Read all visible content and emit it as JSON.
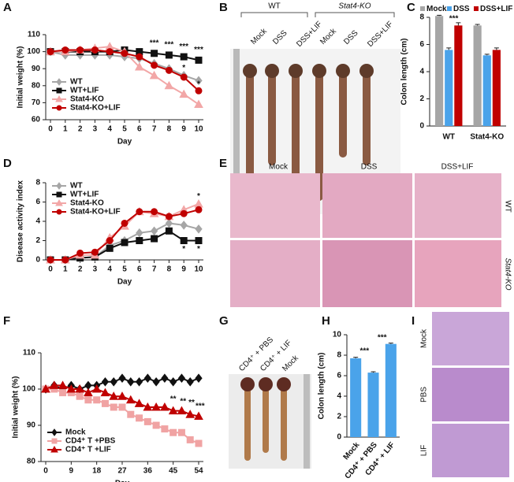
{
  "panels": [
    "A",
    "B",
    "C",
    "D",
    "E",
    "F",
    "G",
    "H",
    "I"
  ],
  "chart_data": [
    {
      "type": "line",
      "ylabel": "Initial  weight (%)",
      "xlabel": "Day",
      "x": [
        0,
        1,
        2,
        3,
        4,
        5,
        6,
        7,
        8,
        9,
        10
      ],
      "xticks": [
        0,
        1,
        2,
        3,
        4,
        5,
        6,
        7,
        8,
        9,
        10
      ],
      "ylim": [
        60,
        110
      ],
      "yticks": [
        60,
        70,
        80,
        90,
        100,
        110
      ],
      "legend": "lower left",
      "series": [
        {
          "name": "WT",
          "color": "#a6a6a6",
          "marker": "diamond",
          "values": [
            100,
            98,
            98,
            98,
            98,
            97,
            96,
            93,
            90,
            86,
            83
          ]
        },
        {
          "name": "WT+LIF",
          "color": "#111111",
          "marker": "square",
          "values": [
            100,
            100,
            100,
            100,
            100,
            101,
            100,
            99,
            98,
            97,
            95
          ]
        },
        {
          "name": "Stat4-KO",
          "color": "#f2a7a7",
          "marker": "triangle",
          "values": [
            100,
            100,
            101,
            102,
            103,
            100,
            91,
            86,
            80,
            75,
            69
          ]
        },
        {
          "name": "Stat4-KO+LIF",
          "color": "#c00000",
          "marker": "circle",
          "values": [
            100,
            101,
            101,
            101,
            100,
            99,
            97,
            92,
            89,
            85,
            77
          ]
        }
      ],
      "annotations": [
        "***",
        "***",
        "***",
        "***",
        "*",
        "*"
      ]
    },
    {
      "type": "bar",
      "ylabel": "Colon length (cm)",
      "categories": [
        "WT",
        "Stat4-KO"
      ],
      "ylim": [
        0,
        8
      ],
      "yticks": [
        0,
        2,
        4,
        6,
        8
      ],
      "legend": "top",
      "series": [
        {
          "name": "Mock",
          "color": "#a6a6a6",
          "values": [
            8.1,
            7.4
          ],
          "errors": [
            0.05,
            0.08
          ]
        },
        {
          "name": "DSS",
          "color": "#4aa3ea",
          "values": [
            5.6,
            5.2
          ],
          "errors": [
            0.15,
            0.08
          ]
        },
        {
          "name": "DSS+LIF",
          "color": "#c00000",
          "values": [
            7.4,
            5.6
          ],
          "errors": [
            0.2,
            0.15
          ]
        }
      ],
      "annotations": [
        "***"
      ]
    },
    {
      "type": "line",
      "ylabel": "Disease activity index",
      "xlabel": "Day",
      "x": [
        0,
        1,
        2,
        3,
        4,
        5,
        6,
        7,
        8,
        9,
        10
      ],
      "xticks": [
        0,
        1,
        2,
        3,
        4,
        5,
        6,
        7,
        8,
        9,
        10
      ],
      "ylim": [
        0,
        8
      ],
      "yticks": [
        0,
        2,
        4,
        6,
        8
      ],
      "legend": "upper left",
      "series": [
        {
          "name": "WT",
          "color": "#a6a6a6",
          "marker": "diamond",
          "values": [
            0,
            0,
            0.2,
            0.3,
            1.5,
            2,
            2.8,
            3,
            3.8,
            3.6,
            3.2
          ]
        },
        {
          "name": "WT+LIF",
          "color": "#111111",
          "marker": "square",
          "values": [
            0,
            0,
            0.2,
            0.3,
            1.2,
            1.8,
            2,
            2.2,
            3,
            2,
            2
          ]
        },
        {
          "name": "Stat4-KO",
          "color": "#f2a7a7",
          "marker": "triangle",
          "values": [
            0,
            0,
            0.5,
            0.5,
            2.3,
            3.5,
            5,
            4.8,
            4.5,
            5.2,
            5.8
          ]
        },
        {
          "name": "Stat4-KO+LIF",
          "color": "#c00000",
          "marker": "circle",
          "values": [
            0,
            0,
            0.7,
            0.8,
            2,
            3.8,
            5,
            5,
            4.5,
            4.8,
            5.2
          ]
        }
      ],
      "annotations": [
        "*",
        "*",
        "*"
      ]
    },
    {
      "type": "line",
      "ylabel": "Initial  weight (%)",
      "xlabel": "Day",
      "x": [
        0,
        3,
        6,
        9,
        12,
        15,
        18,
        21,
        24,
        27,
        30,
        33,
        36,
        39,
        42,
        45,
        48,
        51,
        54
      ],
      "xticks": [
        0,
        9,
        18,
        27,
        36,
        45,
        54
      ],
      "ylim": [
        80,
        110
      ],
      "yticks": [
        80,
        90,
        100,
        110
      ],
      "legend": "lower left",
      "series": [
        {
          "name": "Mock",
          "color": "#111111",
          "marker": "diamond",
          "values": [
            100,
            101,
            100,
            101,
            100,
            101,
            101,
            102,
            102,
            103,
            102,
            102,
            103,
            102,
            103,
            102,
            103,
            102,
            103
          ]
        },
        {
          "name": "CD4⁺ T +PBS",
          "color": "#f0a3a3",
          "marker": "square",
          "values": [
            100,
            100,
            99,
            99,
            98,
            97,
            97,
            96,
            95,
            95,
            93,
            92,
            91,
            90,
            89,
            88,
            88,
            86,
            85
          ]
        },
        {
          "name": "CD4⁺ T +LIF",
          "color": "#c00000",
          "marker": "triangle",
          "values": [
            100,
            101,
            101,
            100,
            100,
            99,
            100,
            99,
            98,
            98,
            97,
            96,
            95,
            95,
            95,
            94,
            94,
            93,
            92.5
          ]
        }
      ],
      "annotations": [
        "**",
        "**",
        "**",
        "***"
      ]
    },
    {
      "type": "bar",
      "ylabel": "Colon length (cm)",
      "categories": [
        "Mock",
        "CD4⁺ + PBS",
        "CD4⁺ + LIF"
      ],
      "ylim": [
        0,
        10
      ],
      "yticks": [
        0,
        2,
        4,
        6,
        8,
        10
      ],
      "series": [
        {
          "color": "#4aa3ea",
          "values": [
            7.7,
            6.3,
            9.1
          ],
          "errors": [
            0.1,
            0.08,
            0.08
          ]
        }
      ],
      "annotations": [
        "***",
        "***"
      ]
    }
  ],
  "photos": {
    "B": {
      "groups": [
        "WT",
        "Stat4-KO"
      ],
      "labels": [
        "Mock",
        "DSS",
        "DSS+LIF",
        "Mock",
        "DSS",
        "DSS+LIF"
      ]
    },
    "E": {
      "columns": [
        "Mock",
        "DSS",
        "DSS+LIF"
      ],
      "rows": [
        "WT",
        "Stat4-KO"
      ]
    },
    "G": {
      "labels": [
        "CD4⁺ + PBS",
        "CD4⁺ + LIF",
        "Mock"
      ]
    },
    "I": {
      "rows": [
        "Mock",
        "PBS",
        "LIF"
      ]
    }
  }
}
